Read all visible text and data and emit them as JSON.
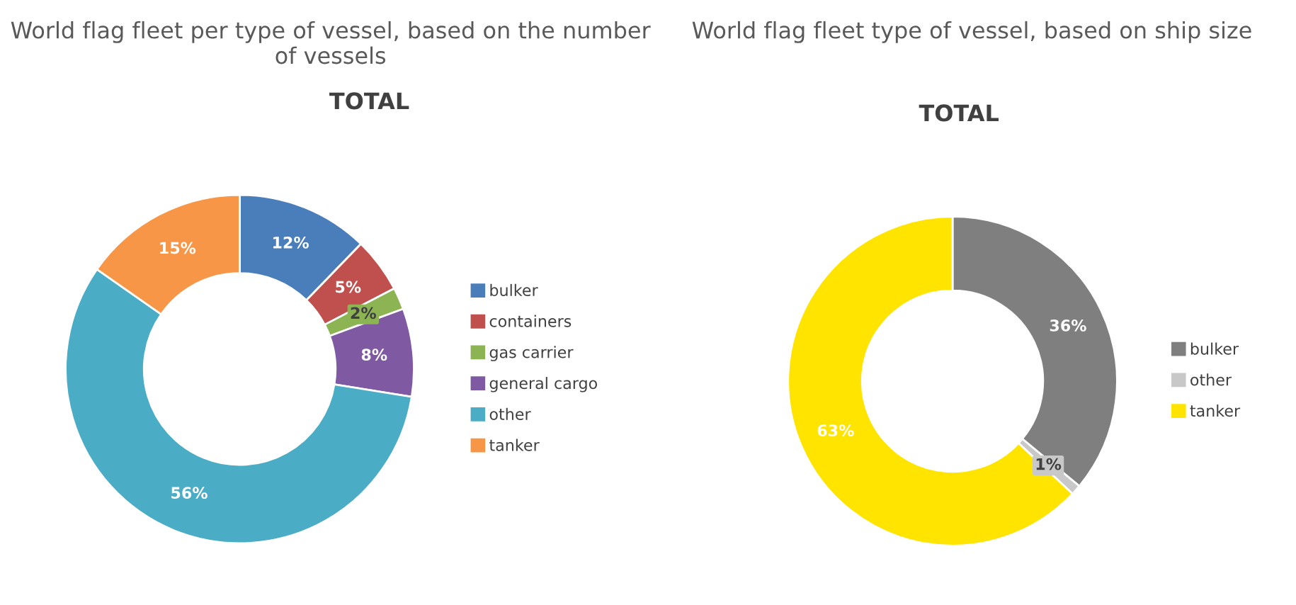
{
  "chart_data": [
    {
      "type": "donut",
      "title": "World flag fleet per type of vessel, based on the number of vessels",
      "subtitle": "TOTAL",
      "categories": [
        "bulker",
        "containers",
        "gas carrier",
        "general cargo",
        "other",
        "tanker"
      ],
      "values": [
        12,
        5,
        2,
        8,
        56,
        15
      ],
      "colors": [
        "#4a7ebb",
        "#c0504d",
        "#8cb453",
        "#7f5aa2",
        "#4bacc6",
        "#f79646"
      ],
      "value_labels": [
        "12%",
        "5%",
        "2%",
        "8%",
        "56%",
        "15%"
      ],
      "legend": "right"
    },
    {
      "type": "donut",
      "title": "World flag fleet type of vessel, based on ship size",
      "subtitle": "TOTAL",
      "categories": [
        "bulker",
        "other",
        "tanker"
      ],
      "values": [
        36,
        1,
        63
      ],
      "colors": [
        "#7f7f7f",
        "#c8c8c8",
        "#ffe400"
      ],
      "value_labels": [
        "36%",
        "1%",
        "63%"
      ],
      "legend": "right"
    }
  ]
}
